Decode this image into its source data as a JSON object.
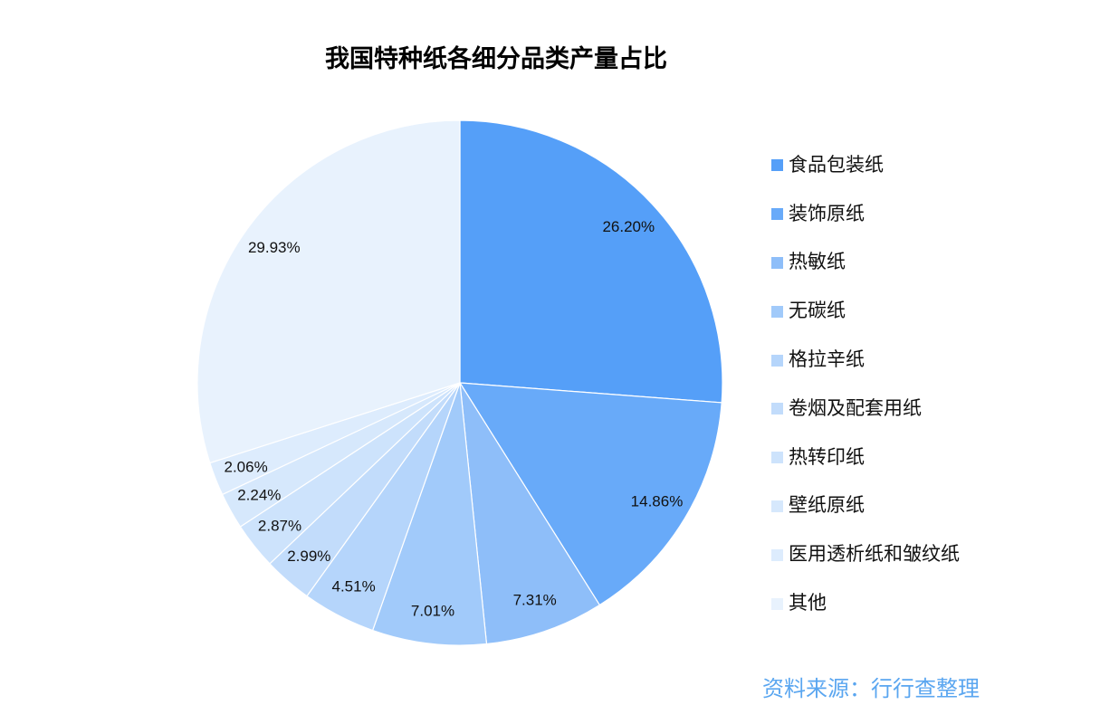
{
  "chart_data": {
    "type": "pie",
    "title": "我国特种纸各细分品类产量占比",
    "categories": [
      "食品包装纸",
      "装饰原纸",
      "热敏纸",
      "无碳纸",
      "格拉辛纸",
      "卷烟及配套用纸",
      "热转印纸",
      "壁纸原纸",
      "医用透析纸和皱纹纸",
      "其他"
    ],
    "values": [
      26.2,
      14.86,
      7.31,
      7.01,
      4.51,
      2.99,
      2.87,
      2.24,
      2.06,
      29.93
    ],
    "data_labels": [
      "26.20%",
      "14.86%",
      "7.31%",
      "7.01%",
      "4.51%",
      "2.99%",
      "2.87%",
      "2.24%",
      "2.06%",
      "29.93%"
    ],
    "colors": [
      "#559FF8",
      "#68AAF9",
      "#8EBEF9",
      "#A1CAFA",
      "#B5D5FB",
      "#C2DCFB",
      "#CDE3FC",
      "#D6E8FC",
      "#DDECFD",
      "#E8F2FD"
    ],
    "legend_position": "right",
    "slice_order": "clockwise from top"
  },
  "source": {
    "text": "资料来源：行行查整理",
    "color": "#5AA6F0"
  }
}
